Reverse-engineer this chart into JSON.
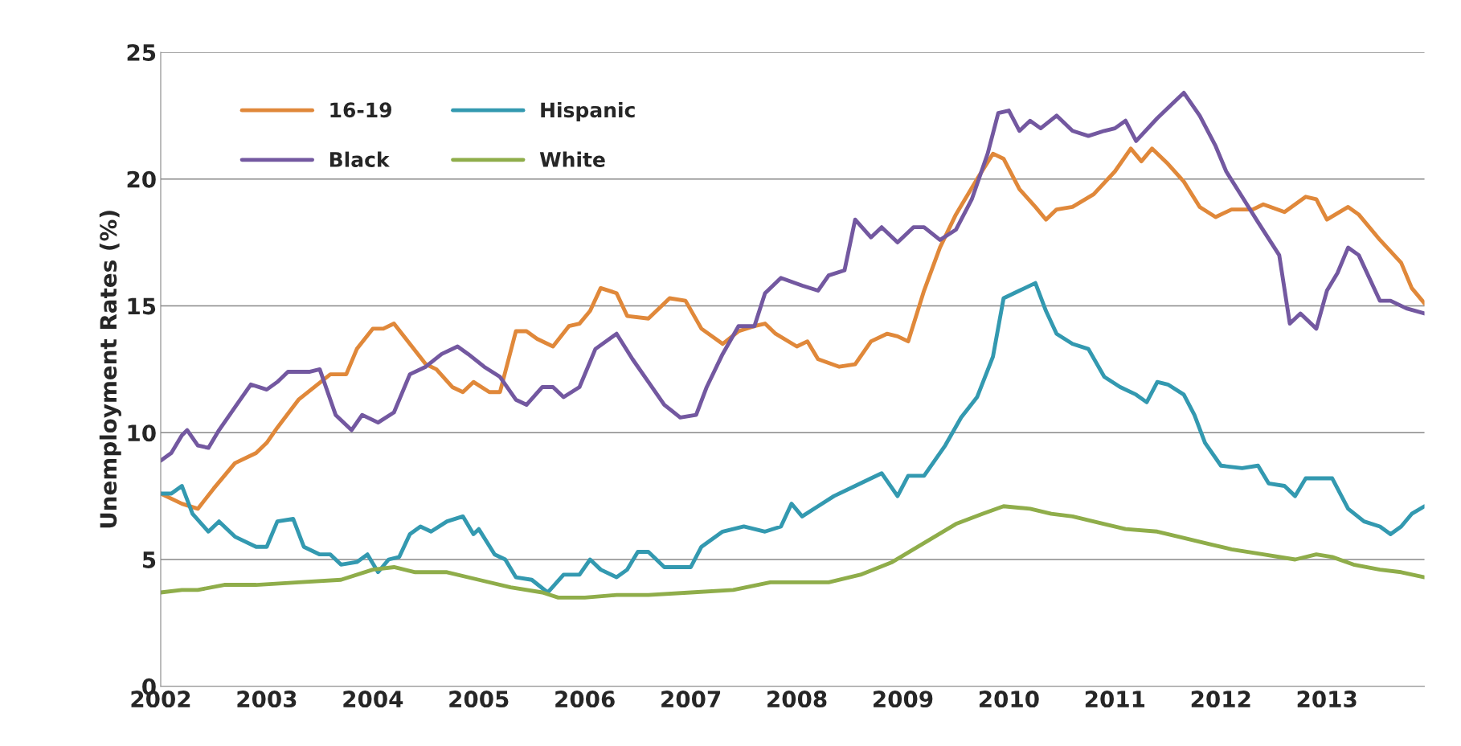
{
  "chart_data": {
    "type": "line",
    "ylabel": "Unemployment Rates (%)",
    "xlim": [
      2002,
      2013.92
    ],
    "xticks": [
      2002,
      2003,
      2004,
      2005,
      2006,
      2007,
      2008,
      2009,
      2010,
      2011,
      2012,
      2013
    ],
    "ylim": [
      0,
      25
    ],
    "yticks": [
      0,
      5,
      10,
      15,
      20,
      25
    ],
    "grid": "y",
    "legend": "top left",
    "marker": "none",
    "line_style": "solid",
    "series": [
      {
        "name": "16-19",
        "color": "#e0883a",
        "x": [
          2002.0,
          2002.2,
          2002.35,
          2002.5,
          2002.7,
          2002.9,
          2003.0,
          2003.1,
          2003.3,
          2003.45,
          2003.6,
          2003.75,
          2003.85,
          2004.0,
          2004.1,
          2004.2,
          2004.35,
          2004.5,
          2004.6,
          2004.75,
          2004.85,
          2004.95,
          2005.1,
          2005.2,
          2005.35,
          2005.45,
          2005.55,
          2005.7,
          2005.85,
          2005.95,
          2006.05,
          2006.15,
          2006.3,
          2006.4,
          2006.6,
          2006.8,
          2006.95,
          2007.1,
          2007.3,
          2007.45,
          2007.6,
          2007.7,
          2007.8,
          2008.0,
          2008.1,
          2008.2,
          2008.4,
          2008.55,
          2008.7,
          2008.85,
          2008.95,
          2009.05,
          2009.2,
          2009.35,
          2009.5,
          2009.7,
          2009.85,
          2009.95,
          2010.1,
          2010.25,
          2010.35,
          2010.45,
          2010.6,
          2010.8,
          2011.0,
          2011.15,
          2011.25,
          2011.35,
          2011.5,
          2011.65,
          2011.8,
          2011.95,
          2012.1,
          2012.3,
          2012.4,
          2012.6,
          2012.8,
          2012.9,
          2013.0,
          2013.2,
          2013.3,
          2013.5,
          2013.7,
          2013.8,
          2013.92
        ],
        "values": [
          7.6,
          7.2,
          7.0,
          7.8,
          8.8,
          9.2,
          9.6,
          10.2,
          11.3,
          11.8,
          12.3,
          12.3,
          13.3,
          14.1,
          14.1,
          14.3,
          13.5,
          12.7,
          12.5,
          11.8,
          11.6,
          12.0,
          11.6,
          11.6,
          14.0,
          14.0,
          13.7,
          13.4,
          14.2,
          14.3,
          14.8,
          15.7,
          15.5,
          14.6,
          14.5,
          15.3,
          15.2,
          14.1,
          13.5,
          14.0,
          14.2,
          14.3,
          13.9,
          13.4,
          13.6,
          12.9,
          12.6,
          12.7,
          13.6,
          13.9,
          13.8,
          13.6,
          15.6,
          17.3,
          18.6,
          20.0,
          21.0,
          20.8,
          19.6,
          18.9,
          18.4,
          18.8,
          18.9,
          19.4,
          20.3,
          21.2,
          20.7,
          21.2,
          20.6,
          19.9,
          18.9,
          18.5,
          18.8,
          18.8,
          19.0,
          18.7,
          19.3,
          19.2,
          18.4,
          18.9,
          18.6,
          17.6,
          16.7,
          15.7,
          15.1
        ]
      },
      {
        "name": "Black",
        "color": "#7358a0",
        "x": [
          2002.0,
          2002.1,
          2002.2,
          2002.25,
          2002.35,
          2002.45,
          2002.55,
          2002.7,
          2002.85,
          2003.0,
          2003.1,
          2003.2,
          2003.4,
          2003.5,
          2003.65,
          2003.8,
          2003.9,
          2004.05,
          2004.2,
          2004.35,
          2004.5,
          2004.65,
          2004.8,
          2004.9,
          2005.05,
          2005.2,
          2005.35,
          2005.45,
          2005.6,
          2005.7,
          2005.8,
          2005.95,
          2006.1,
          2006.3,
          2006.45,
          2006.6,
          2006.75,
          2006.9,
          2007.05,
          2007.15,
          2007.3,
          2007.45,
          2007.6,
          2007.7,
          2007.85,
          2008.05,
          2008.2,
          2008.3,
          2008.45,
          2008.55,
          2008.7,
          2008.8,
          2008.95,
          2009.1,
          2009.2,
          2009.35,
          2009.5,
          2009.65,
          2009.8,
          2009.9,
          2010.0,
          2010.1,
          2010.2,
          2010.3,
          2010.45,
          2010.6,
          2010.75,
          2010.9,
          2011.0,
          2011.1,
          2011.2,
          2011.4,
          2011.55,
          2011.65,
          2011.8,
          2011.95,
          2012.05,
          2012.2,
          2012.35,
          2012.55,
          2012.65,
          2012.75,
          2012.9,
          2013.0,
          2013.1,
          2013.2,
          2013.3,
          2013.5,
          2013.6,
          2013.75,
          2013.92
        ],
        "values": [
          8.9,
          9.2,
          9.9,
          10.1,
          9.5,
          9.4,
          10.1,
          11.0,
          11.9,
          11.7,
          12.0,
          12.4,
          12.4,
          12.5,
          10.7,
          10.1,
          10.7,
          10.4,
          10.8,
          12.3,
          12.6,
          13.1,
          13.4,
          13.1,
          12.6,
          12.2,
          11.3,
          11.1,
          11.8,
          11.8,
          11.4,
          11.8,
          13.3,
          13.9,
          12.9,
          12.0,
          11.1,
          10.6,
          10.7,
          11.8,
          13.1,
          14.2,
          14.2,
          15.5,
          16.1,
          15.8,
          15.6,
          16.2,
          16.4,
          18.4,
          17.7,
          18.1,
          17.5,
          18.1,
          18.1,
          17.6,
          18.0,
          19.2,
          21.0,
          22.6,
          22.7,
          21.9,
          22.3,
          22.0,
          22.5,
          21.9,
          21.7,
          21.9,
          22.0,
          22.3,
          21.5,
          22.4,
          23.0,
          23.4,
          22.5,
          21.3,
          20.3,
          19.3,
          18.3,
          17.0,
          14.3,
          14.7,
          14.1,
          15.6,
          16.3,
          17.3,
          17.0,
          15.2,
          15.2,
          14.9,
          14.7
        ]
      },
      {
        "name": "Hispanic",
        "color": "#3399b0",
        "x": [
          2002.0,
          2002.1,
          2002.2,
          2002.3,
          2002.45,
          2002.55,
          2002.7,
          2002.9,
          2003.0,
          2003.1,
          2003.25,
          2003.35,
          2003.5,
          2003.6,
          2003.7,
          2003.85,
          2003.95,
          2004.05,
          2004.15,
          2004.25,
          2004.35,
          2004.45,
          2004.55,
          2004.7,
          2004.85,
          2004.95,
          2005.0,
          2005.15,
          2005.25,
          2005.35,
          2005.5,
          2005.65,
          2005.8,
          2005.95,
          2006.05,
          2006.15,
          2006.3,
          2006.4,
          2006.5,
          2006.6,
          2006.75,
          2007.0,
          2007.1,
          2007.3,
          2007.5,
          2007.7,
          2007.85,
          2007.95,
          2008.05,
          2008.2,
          2008.35,
          2008.55,
          2008.7,
          2008.8,
          2008.95,
          2009.05,
          2009.2,
          2009.4,
          2009.55,
          2009.7,
          2009.85,
          2009.95,
          2010.1,
          2010.25,
          2010.35,
          2010.45,
          2010.6,
          2010.75,
          2010.9,
          2011.05,
          2011.2,
          2011.3,
          2011.4,
          2011.5,
          2011.65,
          2011.75,
          2011.85,
          2012.0,
          2012.2,
          2012.35,
          2012.45,
          2012.6,
          2012.7,
          2012.8,
          2012.95,
          2013.05,
          2013.2,
          2013.35,
          2013.5,
          2013.6,
          2013.7,
          2013.8,
          2013.92
        ],
        "values": [
          7.6,
          7.6,
          7.9,
          6.8,
          6.1,
          6.5,
          5.9,
          5.5,
          5.5,
          6.5,
          6.6,
          5.5,
          5.2,
          5.2,
          4.8,
          4.9,
          5.2,
          4.5,
          5.0,
          5.1,
          6.0,
          6.3,
          6.1,
          6.5,
          6.7,
          6.0,
          6.2,
          5.2,
          5.0,
          4.3,
          4.2,
          3.7,
          4.4,
          4.4,
          5.0,
          4.6,
          4.3,
          4.6,
          5.3,
          5.3,
          4.7,
          4.7,
          5.5,
          6.1,
          6.3,
          6.1,
          6.3,
          7.2,
          6.7,
          7.1,
          7.5,
          7.9,
          8.2,
          8.4,
          7.5,
          8.3,
          8.3,
          9.5,
          10.6,
          11.4,
          13.0,
          15.3,
          15.6,
          15.9,
          14.8,
          13.9,
          13.5,
          13.3,
          12.2,
          11.8,
          11.5,
          11.2,
          12.0,
          11.9,
          11.5,
          10.7,
          9.6,
          8.7,
          8.6,
          8.7,
          8.0,
          7.9,
          7.5,
          8.2,
          8.2,
          8.2,
          7.0,
          6.5,
          6.3,
          6.0,
          6.3,
          6.8,
          7.1
        ]
      },
      {
        "name": "White",
        "color": "#8fad4a",
        "x": [
          2002.0,
          2002.2,
          2002.35,
          2002.6,
          2002.9,
          2003.3,
          2003.7,
          2004.0,
          2004.2,
          2004.4,
          2004.7,
          2005.0,
          2005.3,
          2005.6,
          2005.75,
          2006.0,
          2006.3,
          2006.6,
          2007.0,
          2007.4,
          2007.75,
          2008.0,
          2008.3,
          2008.6,
          2008.9,
          2009.1,
          2009.3,
          2009.5,
          2009.75,
          2009.95,
          2010.2,
          2010.4,
          2010.6,
          2010.9,
          2011.1,
          2011.4,
          2011.6,
          2011.9,
          2012.1,
          2012.4,
          2012.7,
          2012.9,
          2013.05,
          2013.25,
          2013.5,
          2013.7,
          2013.92
        ],
        "values": [
          3.7,
          3.8,
          3.8,
          4.0,
          4.0,
          4.1,
          4.2,
          4.6,
          4.7,
          4.5,
          4.5,
          4.2,
          3.9,
          3.7,
          3.5,
          3.5,
          3.6,
          3.6,
          3.7,
          3.8,
          4.1,
          4.1,
          4.1,
          4.4,
          4.9,
          5.4,
          5.9,
          6.4,
          6.8,
          7.1,
          7.0,
          6.8,
          6.7,
          6.4,
          6.2,
          6.1,
          5.9,
          5.6,
          5.4,
          5.2,
          5.0,
          5.2,
          5.1,
          4.8,
          4.6,
          4.5,
          4.3
        ]
      }
    ]
  }
}
